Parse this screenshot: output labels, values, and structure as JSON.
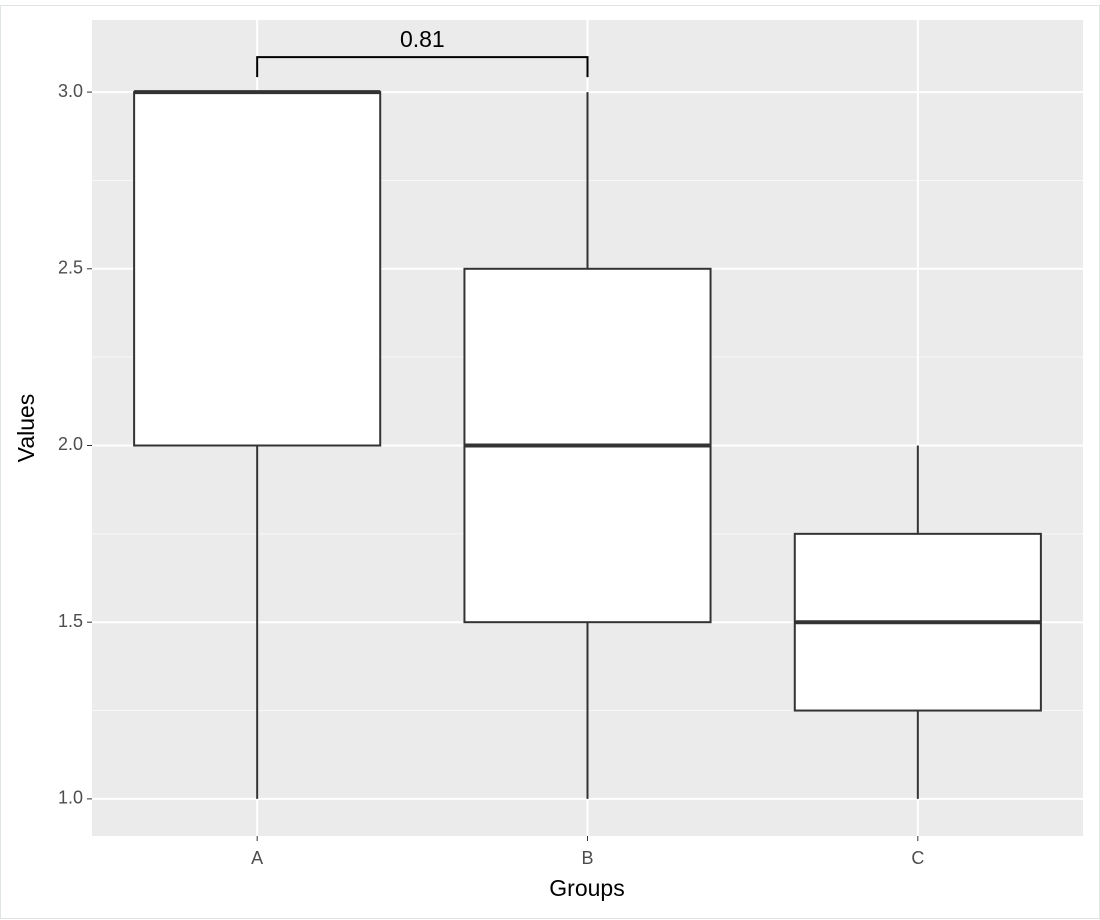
{
  "chart_data": {
    "type": "boxplot",
    "x_label": "Groups",
    "y_label": "Values",
    "categories": [
      "A",
      "B",
      "C"
    ],
    "values": [
      {
        "min": 1,
        "q1": 2,
        "median": 3,
        "q3": 3,
        "max": 3
      },
      {
        "min": 1,
        "q1": 1.5,
        "median": 2,
        "q3": 2.5,
        "max": 3
      },
      {
        "min": 1,
        "q1": 1.25,
        "median": 1.5,
        "q3": 1.75,
        "max": 2
      }
    ],
    "ylim": [
      0.895,
      3.204
    ],
    "yticks": [
      {
        "value": 1,
        "label": "1.0"
      },
      {
        "value": 1.5,
        "label": "1.5"
      },
      {
        "value": 2,
        "label": "2.0"
      },
      {
        "value": 2.5,
        "label": "2.5"
      },
      {
        "value": 3,
        "label": "3.0"
      }
    ],
    "grid": true,
    "comparisons": [
      {
        "groups": [
          "A",
          "B"
        ],
        "label": "0.81"
      }
    ]
  }
}
